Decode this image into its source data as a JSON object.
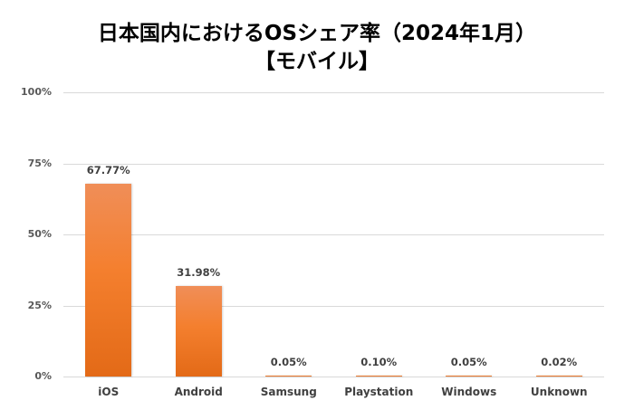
{
  "chart_data": {
    "type": "bar",
    "title": "日本国内におけるOSシェア率（2024年1月）",
    "subtitle": "【モバイル】",
    "categories": [
      "iOS",
      "Android",
      "Samsung",
      "Playstation",
      "Windows",
      "Unknown"
    ],
    "values": [
      67.77,
      31.98,
      0.05,
      0.1,
      0.05,
      0.02
    ],
    "value_labels": [
      "67.77%",
      "31.98%",
      "0.05%",
      "0.10%",
      "0.05%",
      "0.02%"
    ],
    "xlabel": "",
    "ylabel": "",
    "ylim": [
      0,
      100
    ],
    "yticks": [
      "0%",
      "25%",
      "50%",
      "75%",
      "100%"
    ],
    "grid": true,
    "legend": "none",
    "bar_color": "#f47f2e"
  },
  "header": {
    "title_line1": "日本国内におけるOSシェア率（2024年1月）",
    "title_line2": "【モバイル】"
  },
  "axis": {
    "y": [
      "100%",
      "75%",
      "50%",
      "25%",
      "0%"
    ]
  },
  "bars": [
    {
      "label": "iOS",
      "value": 67.77,
      "text": "67.77%"
    },
    {
      "label": "Android",
      "value": 31.98,
      "text": "31.98%"
    },
    {
      "label": "Samsung",
      "value": 0.05,
      "text": "0.05%"
    },
    {
      "label": "Playstation",
      "value": 0.1,
      "text": "0.10%"
    },
    {
      "label": "Windows",
      "value": 0.05,
      "text": "0.05%"
    },
    {
      "label": "Unknown",
      "value": 0.02,
      "text": "0.02%"
    }
  ]
}
